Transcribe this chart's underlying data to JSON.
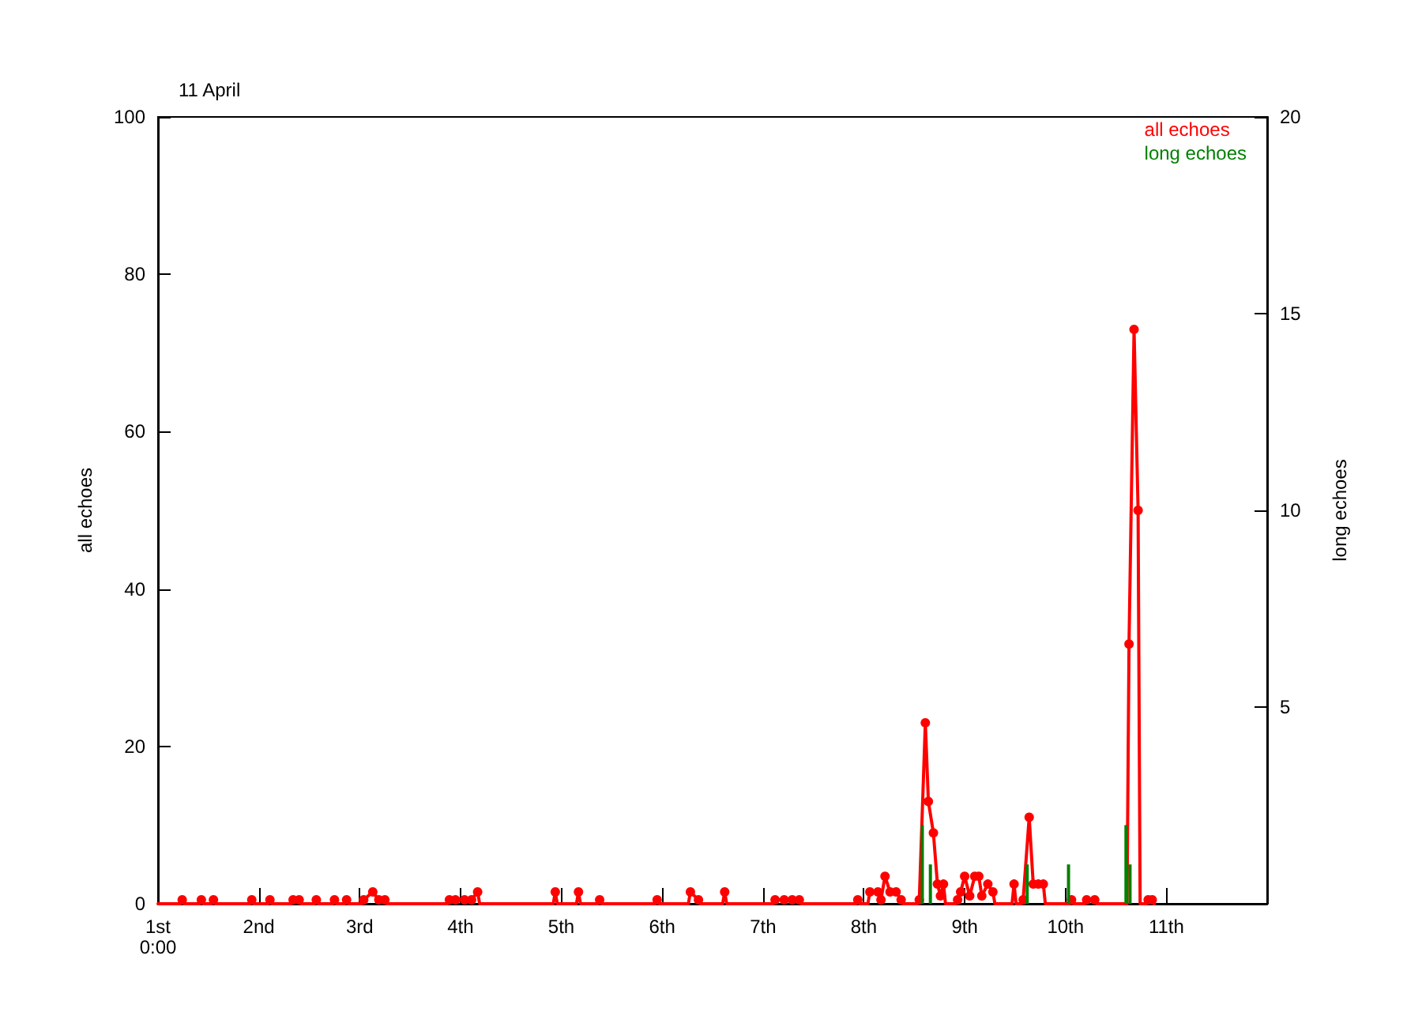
{
  "chart_data": {
    "type": "line",
    "title": "11 April",
    "ylabel": "all echoes",
    "y2label": "long echoes",
    "xlim": [
      1,
      12
    ],
    "xticks": [
      {
        "value": 1,
        "label": "1st\n0:00"
      },
      {
        "value": 2,
        "label": "2nd"
      },
      {
        "value": 3,
        "label": "3rd"
      },
      {
        "value": 4,
        "label": "4th"
      },
      {
        "value": 5,
        "label": "5th"
      },
      {
        "value": 6,
        "label": "6th"
      },
      {
        "value": 7,
        "label": "7th"
      },
      {
        "value": 8,
        "label": "8th"
      },
      {
        "value": 9,
        "label": "9th"
      },
      {
        "value": 10,
        "label": "10th"
      },
      {
        "value": 11,
        "label": "11th"
      }
    ],
    "ylim": [
      0,
      100
    ],
    "yticks": [
      0,
      20,
      40,
      60,
      80,
      100
    ],
    "y2lim": [
      0,
      20
    ],
    "y2ticks": [
      5,
      10,
      15,
      20
    ],
    "grid": false,
    "legend": "top right",
    "marker": "circle",
    "line_style": "solid",
    "series": [
      {
        "name": "all echoes",
        "color": "#ff0000",
        "x": [
          1,
          1.22,
          1.24,
          1.26,
          1.41,
          1.43,
          1.45,
          1.53,
          1.55,
          1.57,
          1.91,
          1.93,
          1.95,
          2.09,
          2.11,
          2.13,
          2.32,
          2.34,
          2.4,
          2.42,
          2.55,
          2.57,
          2.59,
          2.73,
          2.75,
          2.77,
          2.85,
          2.87,
          2.89,
          3.02,
          3.04,
          3.13,
          3.19,
          3.25,
          3.27,
          3.87,
          3.89,
          3.95,
          4.04,
          4.11,
          4.17,
          4.19,
          4.92,
          4.94,
          4.96,
          5.15,
          5.17,
          5.19,
          5.36,
          5.38,
          5.4,
          5.93,
          5.95,
          5.97,
          6.26,
          6.28,
          6.36,
          6.38,
          6.6,
          6.62,
          6.64,
          7.1,
          7.12,
          7.21,
          7.29,
          7.36,
          7.38,
          7.92,
          7.94,
          7.96,
          8.04,
          8.06,
          8.14,
          8.17,
          8.21,
          8.26,
          8.32,
          8.37,
          8.39,
          8.53,
          8.55,
          8.61,
          8.64,
          8.69,
          8.73,
          8.76,
          8.79,
          8.81,
          8.91,
          8.93,
          8.96,
          9.0,
          9.05,
          9.1,
          9.14,
          9.17,
          9.23,
          9.28,
          9.3,
          9.47,
          9.49,
          9.51,
          9.56,
          9.58,
          9.64,
          9.68,
          9.73,
          9.78,
          9.8,
          10.04,
          10.06,
          10.08,
          10.19,
          10.21,
          10.29,
          10.31,
          10.61,
          10.63,
          10.68,
          10.72,
          10.74,
          10.8,
          10.82,
          10.86,
          10.88
        ],
        "values": [
          0,
          0,
          0.5,
          0,
          0,
          0.5,
          0,
          0,
          0.5,
          0,
          0,
          0.5,
          0,
          0,
          0.5,
          0,
          0,
          0.5,
          0.5,
          0,
          0,
          0.5,
          0,
          0,
          0.5,
          0,
          0,
          0.5,
          0,
          0,
          0.5,
          1.5,
          0.5,
          0.5,
          0,
          0,
          0.5,
          0.5,
          0.5,
          0.5,
          1.5,
          0,
          0,
          1.5,
          0,
          0,
          1.5,
          0,
          0,
          0.5,
          0,
          0,
          0.5,
          0,
          0,
          1.5,
          0.5,
          0,
          0,
          1.5,
          0,
          0,
          0.5,
          0.5,
          0.5,
          0.5,
          0,
          0,
          0.5,
          0,
          0,
          1.5,
          1.5,
          0.5,
          3.5,
          1.5,
          1.5,
          0.5,
          0,
          0,
          0.5,
          23,
          13,
          9,
          2.5,
          1,
          2.5,
          0,
          0,
          0.5,
          1.5,
          3.5,
          1,
          3.5,
          3.5,
          1,
          2.5,
          1.5,
          0,
          0,
          2.5,
          0,
          0,
          0.5,
          11,
          2.5,
          2.5,
          2.5,
          0,
          0,
          0.5,
          0,
          0,
          0.5,
          0.5,
          0,
          0,
          33,
          73,
          50,
          0,
          0,
          0.5,
          0.5,
          0
        ]
      },
      {
        "name": "long echoes",
        "color": "#008000",
        "type": "bar",
        "axis": "y2",
        "x": [
          8.58,
          8.66,
          9.62,
          10.03,
          10.6,
          10.64
        ],
        "values": [
          2,
          1,
          1,
          1,
          2,
          1
        ]
      }
    ]
  }
}
